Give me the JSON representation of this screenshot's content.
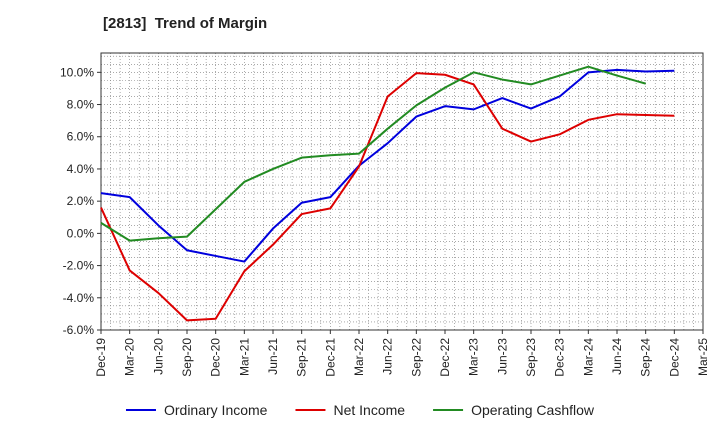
{
  "chart_data": {
    "type": "line",
    "title": "[2813]  Trend of Margin",
    "xlabel": "",
    "ylabel": "",
    "x_tick_labels": [
      "Dec-19",
      "Mar-20",
      "Jun-20",
      "Sep-20",
      "Dec-20",
      "Mar-21",
      "Jun-21",
      "Sep-21",
      "Dec-21",
      "Mar-22",
      "Jun-22",
      "Sep-22",
      "Dec-22",
      "Mar-23",
      "Jun-23",
      "Sep-23",
      "Dec-23",
      "Mar-24",
      "Jun-24",
      "Sep-24",
      "Dec-24",
      "Mar-25"
    ],
    "y_ticks": [
      -6.0,
      -4.0,
      -2.0,
      0.0,
      2.0,
      4.0,
      6.0,
      8.0,
      10.0
    ],
    "y_tick_labels": [
      "-6.0%",
      "-4.0%",
      "-2.0%",
      "0.0%",
      "2.0%",
      "4.0%",
      "6.0%",
      "8.0%",
      "10.0%"
    ],
    "ylim": [
      -6.0,
      11.2
    ],
    "grid": true,
    "legend_position": "bottom",
    "series": [
      {
        "name": "Ordinary Income",
        "color": "#0000dd",
        "values": [
          2.5,
          2.25,
          0.5,
          -1.05,
          -1.4,
          -1.75,
          0.3,
          1.9,
          2.25,
          4.2,
          5.6,
          7.25,
          7.9,
          7.7,
          8.4,
          7.75,
          8.5,
          10.0,
          10.15,
          10.05,
          10.1,
          null
        ]
      },
      {
        "name": "Net Income",
        "color": "#dd0000",
        "values": [
          1.6,
          -2.3,
          -3.7,
          -5.4,
          -5.3,
          -2.35,
          -0.7,
          1.2,
          1.55,
          4.15,
          8.5,
          9.95,
          9.85,
          9.25,
          6.5,
          5.7,
          6.15,
          7.05,
          7.4,
          7.35,
          7.3,
          null
        ]
      },
      {
        "name": "Operating Cashflow",
        "color": "#228b22",
        "values": [
          0.65,
          -0.45,
          -0.3,
          -0.2,
          1.5,
          3.2,
          4.0,
          4.7,
          4.85,
          4.95,
          6.5,
          7.95,
          9.05,
          10.0,
          9.55,
          9.25,
          9.8,
          10.35,
          9.8,
          9.3,
          null,
          null
        ]
      }
    ]
  }
}
